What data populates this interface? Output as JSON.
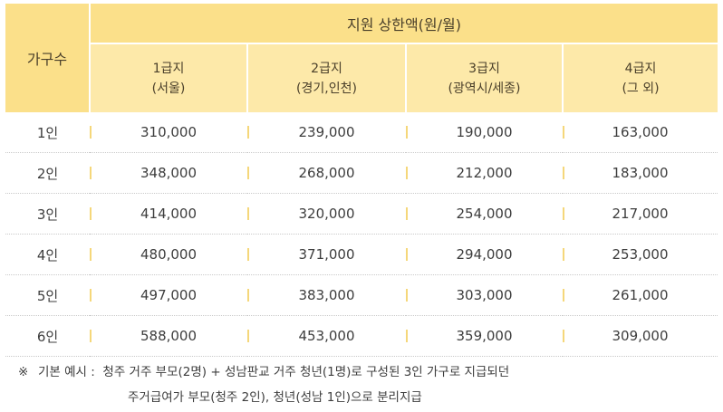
{
  "header": {
    "family_size": "가구수",
    "support_limit": "지원 상한액(원/월)",
    "grades": [
      {
        "name": "1급지",
        "region": "(서울)"
      },
      {
        "name": "2급지",
        "region": "(경기,인천)"
      },
      {
        "name": "3급지",
        "region": "(광역시/세종)"
      },
      {
        "name": "4급지",
        "region": "(그 외)"
      }
    ]
  },
  "rows": [
    {
      "family": "1인",
      "values": [
        "310,000",
        "239,000",
        "190,000",
        "163,000"
      ]
    },
    {
      "family": "2인",
      "values": [
        "348,000",
        "268,000",
        "212,000",
        "183,000"
      ]
    },
    {
      "family": "3인",
      "values": [
        "414,000",
        "320,000",
        "254,000",
        "217,000"
      ]
    },
    {
      "family": "4인",
      "values": [
        "480,000",
        "371,000",
        "294,000",
        "253,000"
      ]
    },
    {
      "family": "5인",
      "values": [
        "497,000",
        "383,000",
        "303,000",
        "261,000"
      ]
    },
    {
      "family": "6인",
      "values": [
        "588,000",
        "453,000",
        "359,000",
        "309,000"
      ]
    }
  ],
  "note": {
    "mark": "※",
    "label": "기본 예시 :",
    "line1": "청주 거주 부모(2명) + 성남판교 거주 청년(1명)로 구성된 3인 가구로 지급되던",
    "line2": "주거급여가 부모(청주 2인), 청년(성남 1인)으로 분리지급"
  },
  "colors": {
    "header_dark": "#fbe08a",
    "header_light": "#fde9a9",
    "separator": "#f5d77a"
  }
}
